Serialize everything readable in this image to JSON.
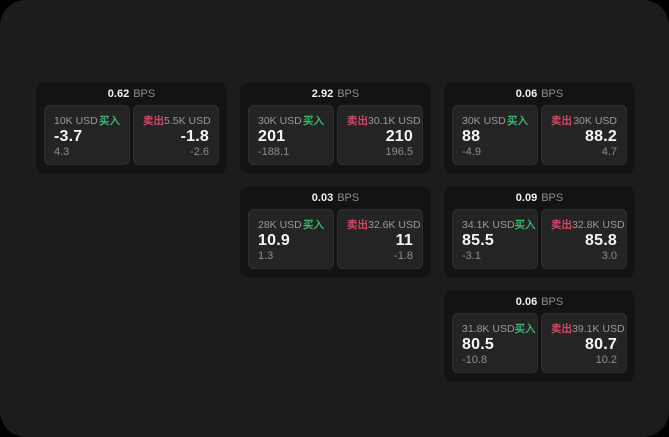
{
  "labels": {
    "buy_label": "买入",
    "sell_label": "卖出",
    "bps_unit": "BPS"
  },
  "colors": {
    "page_background": "#000000",
    "panel_background": "#1c1c1d",
    "card_background": "#131314",
    "tile_background": "#242425",
    "buy_green": "#3cb46e",
    "sell_red": "#cc4a66",
    "value_white": "#f5f5f5",
    "muted_gray": "#8d8d8e"
  },
  "cards": [
    {
      "row": 1,
      "col": 1,
      "bps": "0.62",
      "buy": {
        "amount": "10K USD",
        "value": "-3.7",
        "delta": "4.3"
      },
      "sell": {
        "amount": "5.5K USD",
        "value": "-1.8",
        "delta": "-2.6"
      }
    },
    {
      "row": 1,
      "col": 2,
      "bps": "2.92",
      "buy": {
        "amount": "30K USD",
        "value": "201",
        "delta": "-188.1"
      },
      "sell": {
        "amount": "30.1K USD",
        "value": "210",
        "delta": "196.5"
      }
    },
    {
      "row": 1,
      "col": 3,
      "bps": "0.06",
      "buy": {
        "amount": "30K USD",
        "value": "88",
        "delta": "-4.9"
      },
      "sell": {
        "amount": "30K USD",
        "value": "88.2",
        "delta": "4.7"
      }
    },
    {
      "row": 2,
      "col": 2,
      "bps": "0.03",
      "buy": {
        "amount": "28K USD",
        "value": "10.9",
        "delta": "1.3"
      },
      "sell": {
        "amount": "32.6K USD",
        "value": "11",
        "delta": "-1.8"
      }
    },
    {
      "row": 2,
      "col": 3,
      "bps": "0.09",
      "buy": {
        "amount": "34.1K USD",
        "value": "85.5",
        "delta": "-3.1"
      },
      "sell": {
        "amount": "32.8K USD",
        "value": "85.8",
        "delta": "3.0"
      }
    },
    {
      "row": 3,
      "col": 3,
      "bps": "0.06",
      "buy": {
        "amount": "31.8K USD",
        "value": "80.5",
        "delta": "-10.8"
      },
      "sell": {
        "amount": "39.1K USD",
        "value": "80.7",
        "delta": "10.2"
      }
    }
  ]
}
